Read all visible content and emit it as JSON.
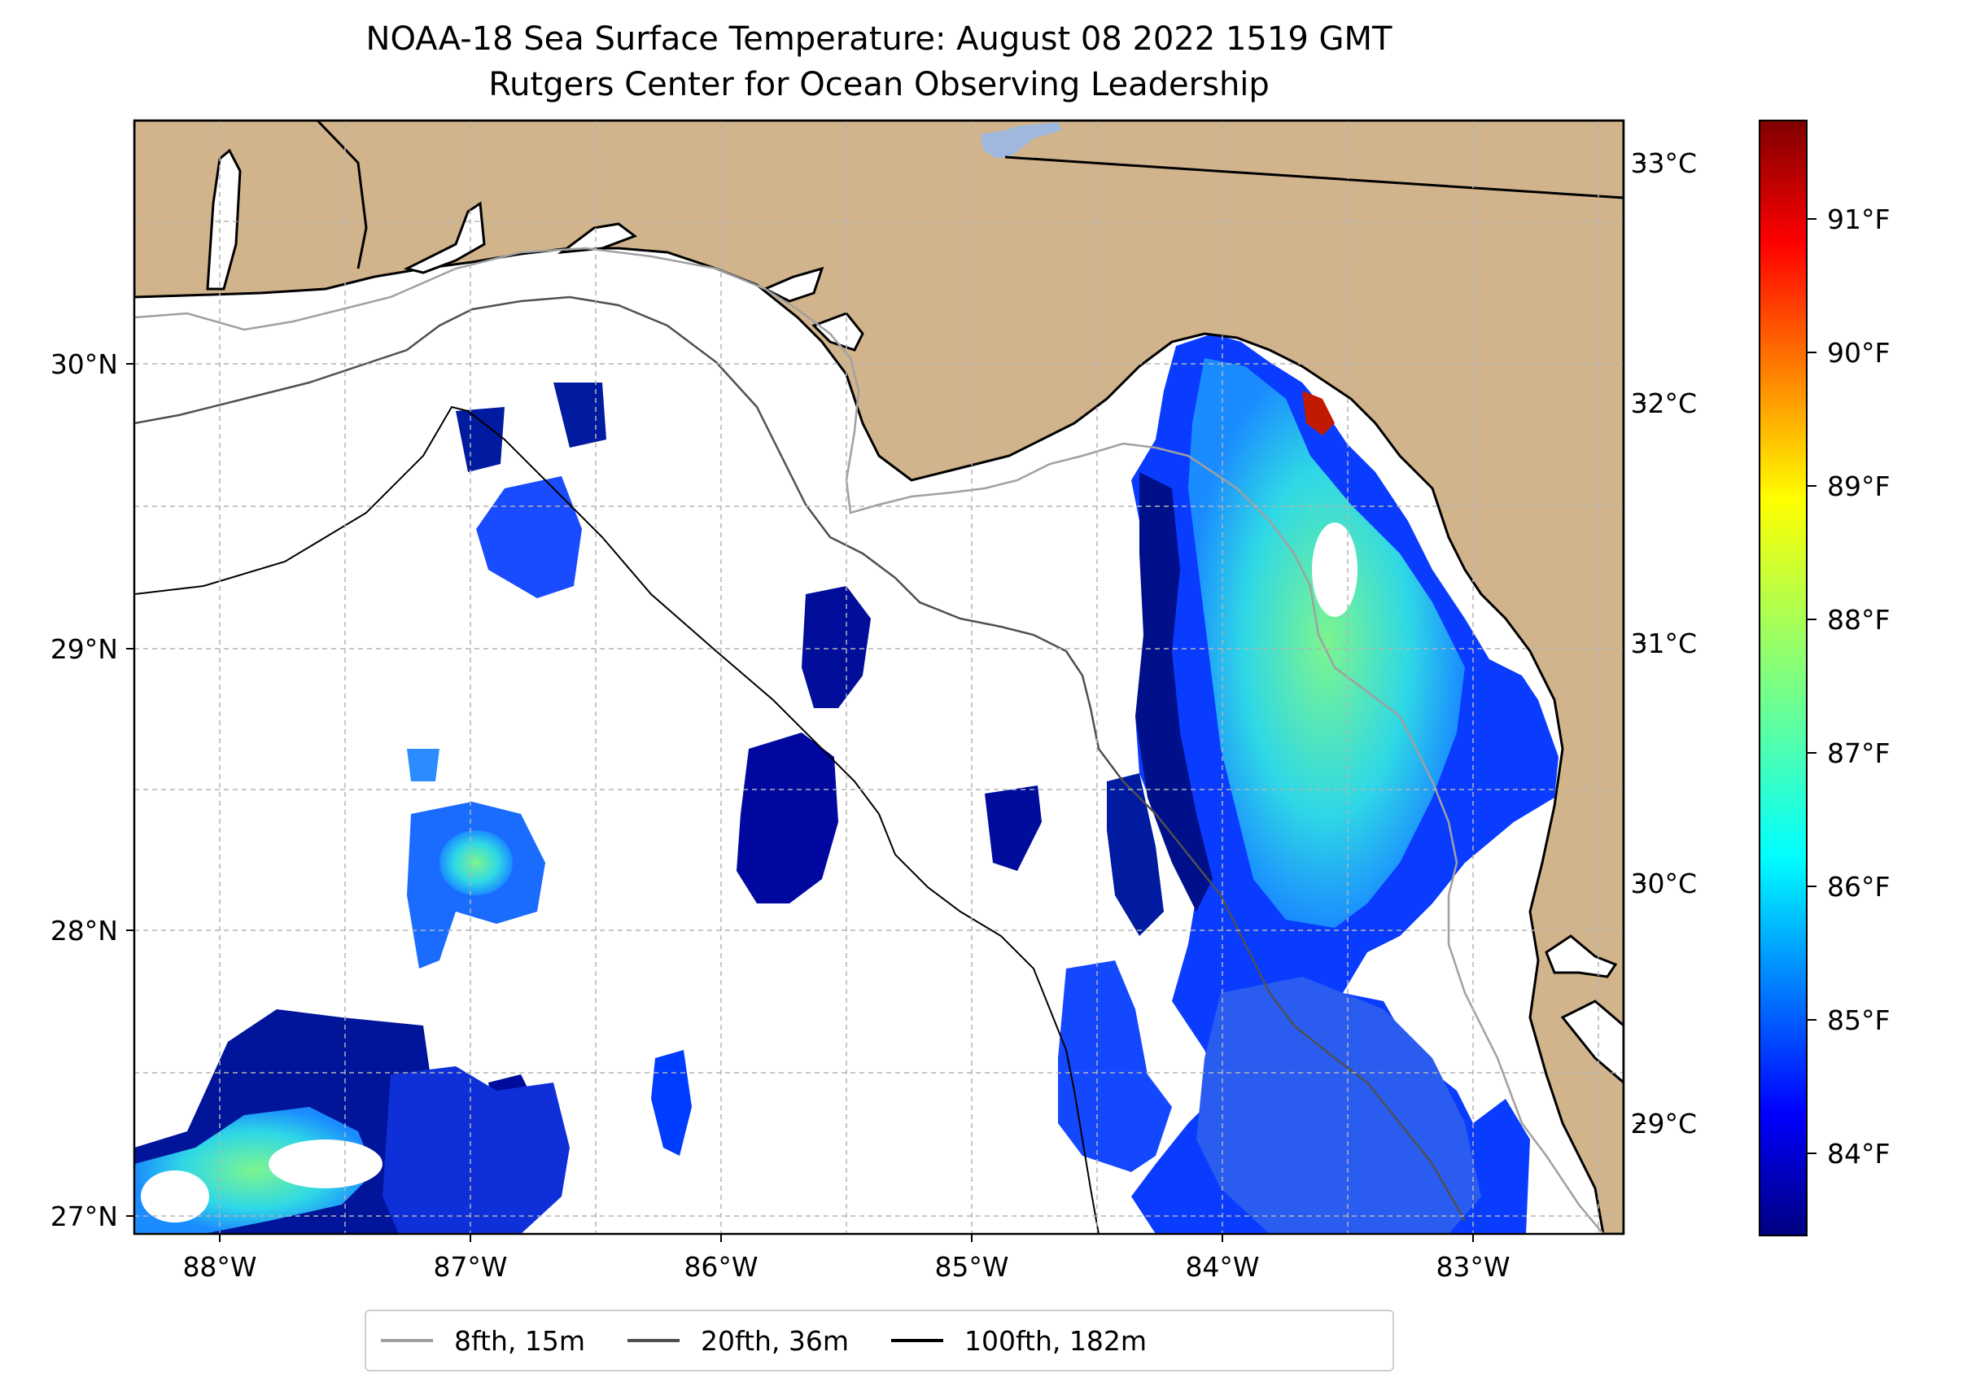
{
  "title": {
    "line1": "NOAA-18 Sea Surface Temperature: August 08 2022 1519 GMT",
    "line2": "Rutgers Center for Ocean Observing Leadership"
  },
  "map": {
    "region": "Gulf of Mexico, Florida Big Bend",
    "extent": {
      "lon_min": -88.33,
      "lon_max": -82.4,
      "lat_min": 26.94,
      "lat_max": 30.85
    },
    "lon_ticks": [
      {
        "value": -88,
        "label": "88°W"
      },
      {
        "value": -87,
        "label": "87°W"
      },
      {
        "value": -86,
        "label": "86°W"
      },
      {
        "value": -85,
        "label": "85°W"
      },
      {
        "value": -84,
        "label": "84°W"
      },
      {
        "value": -83,
        "label": "83°W"
      }
    ],
    "lat_ticks": [
      {
        "value": 27,
        "label": "27°N"
      },
      {
        "value": 28,
        "label": "28°N"
      },
      {
        "value": 29,
        "label": "29°N"
      },
      {
        "value": 30,
        "label": "30°N"
      }
    ],
    "grid": true,
    "land_color": "#d2b48c",
    "water_color": "#ffffff"
  },
  "colorbar": {
    "colormap": "jet",
    "range_c": [
      28.5,
      33.2
    ],
    "celsius_ticks": [
      {
        "value": 29,
        "label": "29°C"
      },
      {
        "value": 30,
        "label": "30°C"
      },
      {
        "value": 31,
        "label": "31°C"
      },
      {
        "value": 32,
        "label": "32°C"
      },
      {
        "value": 33,
        "label": "33°C"
      }
    ],
    "fahrenheit_ticks": [
      {
        "value": 84,
        "label": "84°F"
      },
      {
        "value": 85,
        "label": "85°F"
      },
      {
        "value": 86,
        "label": "86°F"
      },
      {
        "value": 87,
        "label": "87°F"
      },
      {
        "value": 88,
        "label": "88°F"
      },
      {
        "value": 89,
        "label": "89°F"
      },
      {
        "value": 90,
        "label": "90°F"
      },
      {
        "value": 91,
        "label": "91°F"
      }
    ]
  },
  "legend": {
    "items": [
      {
        "label": "8fth, 15m",
        "color": "#a0a0a0"
      },
      {
        "label": "20fth, 36m",
        "color": "#505050"
      },
      {
        "label": "100fth, 182m",
        "color": "#000000"
      }
    ]
  }
}
